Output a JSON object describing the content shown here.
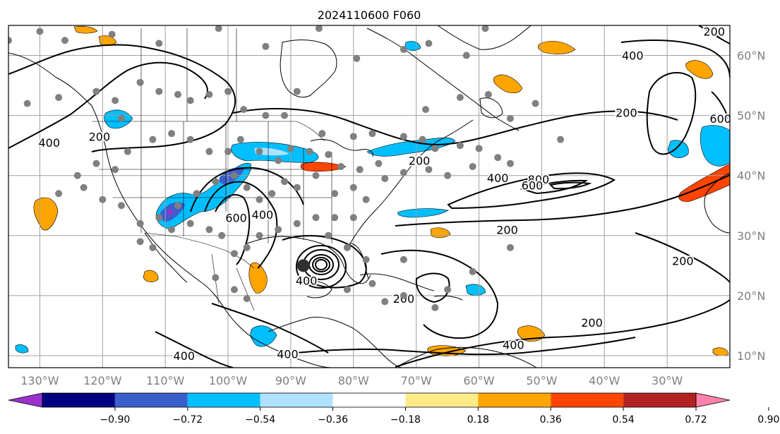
{
  "title": "2024110600 F060",
  "map": {
    "lon_range": [
      -135,
      -20
    ],
    "lat_range": [
      8,
      65
    ],
    "lon_ticks": [
      {
        "value": -130,
        "label": "130°W"
      },
      {
        "value": -120,
        "label": "120°W"
      },
      {
        "value": -110,
        "label": "110°W"
      },
      {
        "value": -100,
        "label": "100°W"
      },
      {
        "value": -90,
        "label": "90°W"
      },
      {
        "value": -80,
        "label": "80°W"
      },
      {
        "value": -70,
        "label": "70°W"
      },
      {
        "value": -60,
        "label": "60°W"
      },
      {
        "value": -50,
        "label": "50°W"
      },
      {
        "value": -40,
        "label": "40°W"
      },
      {
        "value": -30,
        "label": "30°W"
      }
    ],
    "lat_ticks": [
      {
        "value": 10,
        "label": "10°N"
      },
      {
        "value": 20,
        "label": "20°N"
      },
      {
        "value": 30,
        "label": "30°N"
      },
      {
        "value": 40,
        "label": "40°N"
      },
      {
        "value": 50,
        "label": "50°N"
      },
      {
        "value": 60,
        "label": "60°N"
      }
    ],
    "grid": true,
    "colors": {
      "land_outline": "#000000",
      "contour": "#000000",
      "station_dot": "#808080",
      "grid": "#a0a0a0",
      "tick_label": "#7f7f7f"
    },
    "contour_labels": [
      {
        "text": "400",
        "lon": -128.5,
        "lat": 45.5
      },
      {
        "text": "200",
        "lon": -120.5,
        "lat": 46.5
      },
      {
        "text": "400",
        "lon": -94.5,
        "lat": 33.5
      },
      {
        "text": "600",
        "lon": -98.7,
        "lat": 33.0
      },
      {
        "text": "200",
        "lon": -69.5,
        "lat": 42.5
      },
      {
        "text": "400",
        "lon": -57.0,
        "lat": 39.6
      },
      {
        "text": "800",
        "lon": -50.5,
        "lat": 39.4
      },
      {
        "text": "600",
        "lon": -51.5,
        "lat": 38.4
      },
      {
        "text": "200",
        "lon": -55.5,
        "lat": 31.0
      },
      {
        "text": "400",
        "lon": -87.5,
        "lat": 22.5
      },
      {
        "text": "200",
        "lon": -72.0,
        "lat": 19.5
      },
      {
        "text": "200",
        "lon": -42.0,
        "lat": 15.5
      },
      {
        "text": "400",
        "lon": -54.5,
        "lat": 11.8
      },
      {
        "text": "400",
        "lon": -90.5,
        "lat": 10.3
      },
      {
        "text": "400",
        "lon": -107.0,
        "lat": 10.0
      },
      {
        "text": "400",
        "lon": -35.5,
        "lat": 60.0
      },
      {
        "text": "200",
        "lon": -36.5,
        "lat": 50.5
      },
      {
        "text": "200",
        "lon": -22.5,
        "lat": 64.0
      },
      {
        "text": "600",
        "lon": -21.5,
        "lat": 49.5
      },
      {
        "text": "200",
        "lon": -27.5,
        "lat": 25.8
      }
    ],
    "station_dots": [
      [
        -135,
        62.5
      ],
      [
        -130,
        64
      ],
      [
        -126,
        62.5
      ],
      [
        -118.5,
        63.5
      ],
      [
        -111,
        62
      ],
      [
        -101.5,
        64.5
      ],
      [
        -94,
        61.5
      ],
      [
        -85.5,
        64.5
      ],
      [
        -79.5,
        59.5
      ],
      [
        -72,
        61
      ],
      [
        -68,
        62
      ],
      [
        -59,
        64.5
      ],
      [
        -62,
        60
      ],
      [
        -68.5,
        51
      ],
      [
        -63,
        53
      ],
      [
        -58.5,
        53.5
      ],
      [
        -55,
        49.5
      ],
      [
        -51,
        52
      ],
      [
        -47,
        46
      ],
      [
        -132,
        52
      ],
      [
        -127,
        53
      ],
      [
        -121,
        54
      ],
      [
        -118,
        52.5
      ],
      [
        -117,
        49.5
      ],
      [
        -114,
        55.5
      ],
      [
        -111,
        54
      ],
      [
        -108,
        53.5
      ],
      [
        -106,
        52.5
      ],
      [
        -103,
        53.5
      ],
      [
        -100,
        54
      ],
      [
        -97.5,
        51
      ],
      [
        -94,
        50
      ],
      [
        -91,
        50
      ],
      [
        -89,
        54
      ],
      [
        -85,
        47
      ],
      [
        -80,
        46.5
      ],
      [
        -77,
        47
      ],
      [
        -72,
        46.5
      ],
      [
        -69,
        46
      ],
      [
        -67,
        44.5
      ],
      [
        -63,
        45
      ],
      [
        -60,
        44.5
      ],
      [
        -57,
        43
      ],
      [
        -55,
        42
      ],
      [
        -61,
        41.5
      ],
      [
        -65,
        40
      ],
      [
        -68,
        41
      ],
      [
        -72,
        40.5
      ],
      [
        -75,
        39.5
      ],
      [
        -76,
        42
      ],
      [
        -79,
        41
      ],
      [
        -82,
        41.5
      ],
      [
        -84,
        43.5
      ],
      [
        -87,
        44
      ],
      [
        -90,
        44.5
      ],
      [
        -92,
        42.5
      ],
      [
        -95,
        44
      ],
      [
        -98,
        46
      ],
      [
        -100,
        44
      ],
      [
        -103,
        44
      ],
      [
        -106,
        46
      ],
      [
        -109,
        47
      ],
      [
        -112,
        46
      ],
      [
        -116,
        44
      ],
      [
        -118,
        41
      ],
      [
        -121,
        42
      ],
      [
        -124,
        40
      ],
      [
        -127,
        37
      ],
      [
        -123,
        38
      ],
      [
        -120,
        36
      ],
      [
        -117,
        35
      ],
      [
        -114,
        32
      ],
      [
        -111,
        33
      ],
      [
        -108,
        35
      ],
      [
        -105,
        37
      ],
      [
        -102,
        39
      ],
      [
        -99,
        40
      ],
      [
        -97,
        38
      ],
      [
        -95,
        36
      ],
      [
        -93,
        37
      ],
      [
        -91,
        39
      ],
      [
        -89,
        38
      ],
      [
        -86,
        40
      ],
      [
        -83,
        37
      ],
      [
        -80,
        38
      ],
      [
        -78,
        36
      ],
      [
        -80,
        33
      ],
      [
        -83,
        33
      ],
      [
        -86,
        33
      ],
      [
        -89,
        32
      ],
      [
        -92,
        31
      ],
      [
        -95,
        30
      ],
      [
        -97,
        28
      ],
      [
        -99,
        27
      ],
      [
        -101,
        30
      ],
      [
        -103,
        31
      ],
      [
        -106,
        32
      ],
      [
        -109,
        31
      ],
      [
        -112,
        28
      ],
      [
        -114,
        29
      ],
      [
        -102,
        23
      ],
      [
        -99,
        21
      ],
      [
        -97,
        19.5
      ],
      [
        -81,
        21
      ],
      [
        -77,
        22
      ],
      [
        -75,
        19
      ],
      [
        -72,
        20
      ],
      [
        -67,
        18
      ],
      [
        -61,
        24
      ],
      [
        -55,
        28
      ],
      [
        -84,
        30
      ],
      [
        -81,
        28
      ],
      [
        -78,
        26
      ],
      [
        -72,
        26
      ],
      [
        -65,
        21
      ]
    ],
    "cyclone_center": {
      "lon": -88,
      "lat": 25
    }
  },
  "colorbar": {
    "colors": [
      "#9932cc",
      "#000080",
      "#3a5fcd",
      "#00bfff",
      "#b0e2ff",
      "#ffffff",
      "#ffeb8a",
      "#ffa500",
      "#ff4500",
      "#b22222",
      "#ff82ab"
    ],
    "ticks": [
      "−0.90",
      "−0.72",
      "−0.54",
      "−0.36",
      "−0.18",
      "0.18",
      "0.36",
      "0.54",
      "0.72",
      "0.90"
    ],
    "extend": "both"
  }
}
